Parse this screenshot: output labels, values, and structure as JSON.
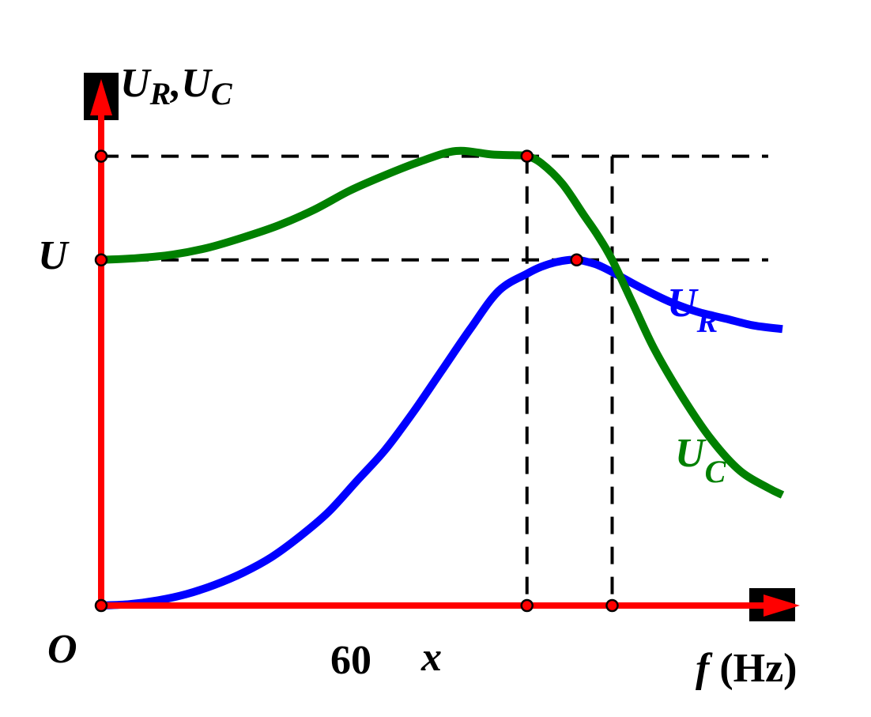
{
  "chart_data": {
    "type": "line",
    "y_axis_label": {
      "main": "U",
      "sub1": "R",
      "sep": ",",
      "main2": "U",
      "sub2": "C"
    },
    "x_axis_label": {
      "var": "f",
      "unit": " (Hz)"
    },
    "origin_label": "O",
    "y_ticks": [
      {
        "label": "U",
        "value": 1.0
      }
    ],
    "x_ticks": [
      {
        "label": "60",
        "value": 60
      },
      {
        "label": "x",
        "value": 72
      }
    ],
    "xlim": [
      0,
      96
    ],
    "ylim": [
      0,
      1.45
    ],
    "reference_lines": {
      "horizontal": [
        1.0,
        1.3
      ],
      "vertical": [
        60,
        72
      ]
    },
    "series": [
      {
        "name": "U_R",
        "label_main": "U",
        "label_sub": "R",
        "color": "#0000ff",
        "x": [
          0,
          4,
          8,
          12,
          16,
          20,
          24,
          28,
          32,
          36,
          40,
          44,
          48,
          52,
          56,
          60,
          62,
          64,
          66,
          67,
          68,
          70,
          72,
          76,
          80,
          84,
          88,
          92,
          96
        ],
        "y": [
          0,
          0.004,
          0.015,
          0.033,
          0.06,
          0.095,
          0.14,
          0.2,
          0.27,
          0.36,
          0.45,
          0.56,
          0.68,
          0.8,
          0.91,
          0.96,
          0.98,
          0.993,
          1.0,
          1.0,
          0.997,
          0.985,
          0.965,
          0.92,
          0.88,
          0.85,
          0.83,
          0.81,
          0.8
        ]
      },
      {
        "name": "U_C",
        "label_main": "U",
        "label_sub": "C",
        "color": "#008000",
        "x": [
          0,
          5,
          10,
          15,
          20,
          25,
          30,
          35,
          40,
          45,
          50,
          55,
          58,
          60,
          62,
          65,
          68,
          70,
          72,
          75,
          78,
          82,
          86,
          90,
          94,
          96
        ],
        "y": [
          1.0,
          1.005,
          1.015,
          1.035,
          1.065,
          1.1,
          1.145,
          1.2,
          1.245,
          1.285,
          1.315,
          1.305,
          1.303,
          1.3,
          1.28,
          1.22,
          1.13,
          1.07,
          1.0,
          0.87,
          0.74,
          0.6,
          0.48,
          0.39,
          0.34,
          0.32
        ]
      }
    ],
    "markers": [
      {
        "x": 0,
        "y": 0
      },
      {
        "x": 0,
        "y": 1.0
      },
      {
        "x": 0,
        "y": 1.3
      },
      {
        "x": 60,
        "y": 0
      },
      {
        "x": 72,
        "y": 0
      },
      {
        "x": 60,
        "y": 1.3
      },
      {
        "x": 67,
        "y": 1.0
      }
    ],
    "axis_color": "#ff0000",
    "marker_color": "#ff0000"
  }
}
